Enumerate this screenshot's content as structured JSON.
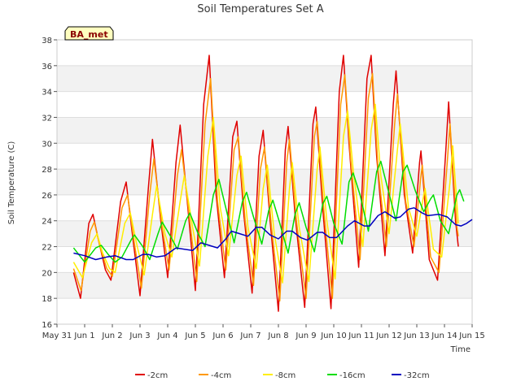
{
  "chart_data": {
    "type": "line",
    "title": "Soil Temperatures Set A",
    "xlabel": "Time",
    "ylabel": "Soil Temperature (C)",
    "badge": "BA_met",
    "xlim": [
      0,
      15
    ],
    "ylim": [
      16,
      38
    ],
    "x_ticks": [
      {
        "v": 0,
        "label": "May 31"
      },
      {
        "v": 1,
        "label": "Jun 1"
      },
      {
        "v": 2,
        "label": "Jun 2"
      },
      {
        "v": 3,
        "label": "Jun 3"
      },
      {
        "v": 4,
        "label": "Jun 4"
      },
      {
        "v": 5,
        "label": "Jun 5"
      },
      {
        "v": 6,
        "label": "Jun 6"
      },
      {
        "v": 7,
        "label": "Jun 7"
      },
      {
        "v": 8,
        "label": "Jun 8"
      },
      {
        "v": 9,
        "label": "Jun 9"
      },
      {
        "v": 10,
        "label": "Jun 10"
      },
      {
        "v": 11,
        "label": "Jun 11"
      },
      {
        "v": 12,
        "label": "Jun 12"
      },
      {
        "v": 13,
        "label": "Jun 13"
      },
      {
        "v": 14,
        "label": "Jun 14"
      },
      {
        "v": 15,
        "label": "Jun 15"
      }
    ],
    "y_ticks": [
      16,
      18,
      20,
      22,
      24,
      26,
      28,
      30,
      32,
      34,
      36,
      38
    ],
    "grid": true,
    "legend_position": "bottom",
    "series": [
      {
        "name": "-2cm",
        "color": "#e00000",
        "points": [
          [
            0.6,
            20.0
          ],
          [
            0.85,
            18.0
          ],
          [
            1.15,
            23.8
          ],
          [
            1.3,
            24.5
          ],
          [
            1.5,
            22.5
          ],
          [
            1.75,
            20.2
          ],
          [
            1.95,
            19.4
          ],
          [
            2.3,
            25.5
          ],
          [
            2.5,
            27.0
          ],
          [
            2.75,
            22.5
          ],
          [
            3.0,
            18.2
          ],
          [
            3.3,
            26.5
          ],
          [
            3.45,
            30.3
          ],
          [
            3.75,
            24.0
          ],
          [
            4.0,
            19.6
          ],
          [
            4.3,
            28.5
          ],
          [
            4.45,
            31.4
          ],
          [
            4.75,
            24.5
          ],
          [
            5.0,
            18.6
          ],
          [
            5.3,
            33.0
          ],
          [
            5.5,
            36.8
          ],
          [
            5.75,
            26.0
          ],
          [
            6.05,
            19.6
          ],
          [
            6.35,
            30.5
          ],
          [
            6.5,
            31.7
          ],
          [
            6.75,
            24.5
          ],
          [
            7.05,
            18.4
          ],
          [
            7.3,
            29.0
          ],
          [
            7.45,
            31.0
          ],
          [
            7.7,
            24.0
          ],
          [
            8.0,
            17.0
          ],
          [
            8.25,
            29.5
          ],
          [
            8.35,
            31.3
          ],
          [
            8.6,
            24.5
          ],
          [
            8.95,
            17.3
          ],
          [
            9.25,
            31.5
          ],
          [
            9.35,
            32.8
          ],
          [
            9.6,
            25.0
          ],
          [
            9.9,
            17.2
          ],
          [
            10.2,
            34.0
          ],
          [
            10.35,
            36.8
          ],
          [
            10.55,
            30.0
          ],
          [
            10.9,
            20.4
          ],
          [
            11.2,
            35.0
          ],
          [
            11.35,
            36.8
          ],
          [
            11.55,
            29.0
          ],
          [
            11.85,
            21.3
          ],
          [
            12.15,
            33.0
          ],
          [
            12.25,
            35.6
          ],
          [
            12.55,
            26.0
          ],
          [
            12.85,
            21.5
          ],
          [
            13.1,
            28.5
          ],
          [
            13.15,
            29.4
          ],
          [
            13.45,
            21.0
          ],
          [
            13.75,
            19.4
          ],
          [
            14.05,
            29.5
          ],
          [
            14.15,
            33.2
          ],
          [
            14.4,
            24.0
          ],
          [
            14.5,
            22.0
          ]
        ]
      },
      {
        "name": "-4cm",
        "color": "#ff9900",
        "points": [
          [
            0.6,
            20.3
          ],
          [
            0.87,
            18.6
          ],
          [
            1.2,
            23.2
          ],
          [
            1.35,
            23.9
          ],
          [
            1.55,
            22.0
          ],
          [
            1.8,
            20.3
          ],
          [
            2.0,
            19.7
          ],
          [
            2.35,
            25.0
          ],
          [
            2.55,
            26.0
          ],
          [
            2.8,
            22.2
          ],
          [
            3.05,
            18.8
          ],
          [
            3.35,
            26.0
          ],
          [
            3.5,
            28.8
          ],
          [
            3.8,
            23.5
          ],
          [
            4.05,
            20.2
          ],
          [
            4.35,
            27.5
          ],
          [
            4.5,
            29.5
          ],
          [
            4.8,
            24.0
          ],
          [
            5.05,
            19.3
          ],
          [
            5.35,
            31.5
          ],
          [
            5.55,
            35.0
          ],
          [
            5.8,
            25.5
          ],
          [
            6.1,
            20.2
          ],
          [
            6.4,
            29.5
          ],
          [
            6.55,
            30.5
          ],
          [
            6.8,
            24.0
          ],
          [
            7.1,
            19.0
          ],
          [
            7.35,
            28.0
          ],
          [
            7.5,
            29.7
          ],
          [
            7.75,
            23.5
          ],
          [
            8.05,
            17.8
          ],
          [
            8.3,
            28.5
          ],
          [
            8.4,
            30.3
          ],
          [
            8.65,
            24.0
          ],
          [
            9.0,
            18.0
          ],
          [
            9.3,
            30.5
          ],
          [
            9.4,
            31.7
          ],
          [
            9.65,
            24.6
          ],
          [
            9.95,
            18.0
          ],
          [
            10.25,
            33.0
          ],
          [
            10.4,
            35.3
          ],
          [
            10.6,
            29.0
          ],
          [
            10.95,
            21.0
          ],
          [
            11.25,
            33.5
          ],
          [
            11.4,
            35.4
          ],
          [
            11.6,
            28.0
          ],
          [
            11.9,
            22.0
          ],
          [
            12.2,
            31.5
          ],
          [
            12.3,
            33.8
          ],
          [
            12.6,
            25.5
          ],
          [
            12.9,
            22.0
          ],
          [
            13.15,
            27.5
          ],
          [
            13.2,
            28.3
          ],
          [
            13.5,
            21.2
          ],
          [
            13.8,
            20.0
          ],
          [
            14.1,
            28.5
          ],
          [
            14.2,
            31.5
          ],
          [
            14.45,
            23.5
          ],
          [
            14.5,
            22.8
          ]
        ]
      },
      {
        "name": "-8cm",
        "color": "#ffee00",
        "points": [
          [
            0.6,
            20.8
          ],
          [
            0.92,
            19.6
          ],
          [
            1.25,
            22.3
          ],
          [
            1.45,
            23.0
          ],
          [
            1.65,
            21.5
          ],
          [
            1.9,
            20.3
          ],
          [
            2.1,
            20.0
          ],
          [
            2.45,
            23.8
          ],
          [
            2.65,
            24.6
          ],
          [
            2.9,
            22.0
          ],
          [
            3.15,
            19.8
          ],
          [
            3.45,
            24.5
          ],
          [
            3.6,
            26.7
          ],
          [
            3.9,
            23.0
          ],
          [
            4.15,
            21.2
          ],
          [
            4.45,
            25.5
          ],
          [
            4.6,
            27.5
          ],
          [
            4.9,
            23.5
          ],
          [
            5.15,
            20.5
          ],
          [
            5.45,
            29.0
          ],
          [
            5.65,
            32.0
          ],
          [
            5.9,
            25.0
          ],
          [
            6.2,
            21.3
          ],
          [
            6.5,
            27.5
          ],
          [
            6.65,
            29.0
          ],
          [
            6.9,
            23.5
          ],
          [
            7.2,
            20.3
          ],
          [
            7.45,
            26.5
          ],
          [
            7.6,
            28.3
          ],
          [
            7.85,
            23.0
          ],
          [
            8.15,
            19.2
          ],
          [
            8.4,
            26.5
          ],
          [
            8.5,
            28.5
          ],
          [
            8.75,
            23.5
          ],
          [
            9.1,
            19.3
          ],
          [
            9.4,
            28.0
          ],
          [
            9.5,
            29.7
          ],
          [
            9.75,
            24.0
          ],
          [
            10.05,
            19.5
          ],
          [
            10.35,
            30.5
          ],
          [
            10.5,
            32.5
          ],
          [
            10.7,
            28.0
          ],
          [
            11.05,
            22.0
          ],
          [
            11.35,
            31.0
          ],
          [
            11.5,
            33.0
          ],
          [
            11.7,
            27.5
          ],
          [
            12.0,
            23.0
          ],
          [
            12.3,
            29.5
          ],
          [
            12.4,
            31.5
          ],
          [
            12.7,
            25.0
          ],
          [
            13.0,
            22.8
          ],
          [
            13.25,
            26.0
          ],
          [
            13.3,
            26.5
          ],
          [
            13.6,
            21.8
          ],
          [
            13.9,
            21.2
          ],
          [
            14.2,
            27.0
          ],
          [
            14.3,
            29.8
          ],
          [
            14.5,
            23.8
          ]
        ]
      },
      {
        "name": "-16cm",
        "color": "#00dd00",
        "points": [
          [
            0.6,
            21.9
          ],
          [
            1.0,
            20.8
          ],
          [
            1.4,
            21.9
          ],
          [
            1.6,
            22.1
          ],
          [
            1.85,
            21.4
          ],
          [
            2.1,
            20.8
          ],
          [
            2.35,
            21.2
          ],
          [
            2.7,
            22.6
          ],
          [
            2.8,
            22.9
          ],
          [
            3.1,
            22.0
          ],
          [
            3.35,
            21.0
          ],
          [
            3.65,
            23.0
          ],
          [
            3.8,
            23.9
          ],
          [
            4.1,
            22.8
          ],
          [
            4.35,
            21.8
          ],
          [
            4.65,
            24.0
          ],
          [
            4.8,
            24.6
          ],
          [
            5.1,
            23.0
          ],
          [
            5.35,
            22.0
          ],
          [
            5.65,
            26.0
          ],
          [
            5.85,
            27.2
          ],
          [
            6.1,
            25.0
          ],
          [
            6.4,
            22.3
          ],
          [
            6.7,
            25.5
          ],
          [
            6.85,
            26.2
          ],
          [
            7.1,
            24.3
          ],
          [
            7.4,
            22.2
          ],
          [
            7.65,
            24.8
          ],
          [
            7.8,
            25.6
          ],
          [
            8.05,
            23.8
          ],
          [
            8.35,
            21.5
          ],
          [
            8.6,
            24.5
          ],
          [
            8.75,
            25.4
          ],
          [
            9.0,
            23.5
          ],
          [
            9.3,
            21.6
          ],
          [
            9.6,
            25.3
          ],
          [
            9.75,
            25.9
          ],
          [
            10.0,
            23.8
          ],
          [
            10.3,
            22.2
          ],
          [
            10.55,
            27.0
          ],
          [
            10.7,
            27.7
          ],
          [
            10.95,
            26.0
          ],
          [
            11.25,
            23.2
          ],
          [
            11.55,
            27.8
          ],
          [
            11.7,
            28.6
          ],
          [
            11.95,
            26.5
          ],
          [
            12.25,
            24.0
          ],
          [
            12.5,
            27.8
          ],
          [
            12.65,
            28.3
          ],
          [
            12.95,
            26.3
          ],
          [
            13.25,
            24.7
          ],
          [
            13.5,
            25.7
          ],
          [
            13.6,
            26.0
          ],
          [
            13.85,
            24.0
          ],
          [
            14.15,
            23.0
          ],
          [
            14.45,
            26.0
          ],
          [
            14.55,
            26.4
          ],
          [
            14.7,
            25.5
          ]
        ]
      },
      {
        "name": "-32cm",
        "color": "#0000c0",
        "points": [
          [
            0.6,
            21.5
          ],
          [
            1.0,
            21.3
          ],
          [
            1.4,
            21.0
          ],
          [
            1.8,
            21.2
          ],
          [
            2.1,
            21.3
          ],
          [
            2.5,
            21.0
          ],
          [
            2.75,
            21.0
          ],
          [
            3.1,
            21.4
          ],
          [
            3.3,
            21.4
          ],
          [
            3.6,
            21.2
          ],
          [
            3.9,
            21.3
          ],
          [
            4.3,
            21.9
          ],
          [
            4.6,
            21.8
          ],
          [
            4.9,
            21.7
          ],
          [
            5.2,
            22.3
          ],
          [
            5.5,
            22.1
          ],
          [
            5.8,
            21.9
          ],
          [
            6.1,
            22.6
          ],
          [
            6.3,
            23.2
          ],
          [
            6.6,
            23.0
          ],
          [
            6.9,
            22.8
          ],
          [
            7.2,
            23.5
          ],
          [
            7.4,
            23.5
          ],
          [
            7.7,
            22.9
          ],
          [
            8.0,
            22.6
          ],
          [
            8.3,
            23.2
          ],
          [
            8.5,
            23.2
          ],
          [
            8.8,
            22.7
          ],
          [
            9.05,
            22.5
          ],
          [
            9.4,
            23.1
          ],
          [
            9.6,
            23.1
          ],
          [
            9.85,
            22.7
          ],
          [
            10.1,
            22.7
          ],
          [
            10.5,
            23.6
          ],
          [
            10.75,
            24.0
          ],
          [
            11.1,
            23.6
          ],
          [
            11.3,
            23.6
          ],
          [
            11.6,
            24.4
          ],
          [
            11.85,
            24.7
          ],
          [
            12.2,
            24.2
          ],
          [
            12.4,
            24.3
          ],
          [
            12.7,
            24.9
          ],
          [
            12.9,
            25.0
          ],
          [
            13.2,
            24.6
          ],
          [
            13.4,
            24.4
          ],
          [
            13.8,
            24.5
          ],
          [
            14.1,
            24.3
          ],
          [
            14.4,
            23.7
          ],
          [
            14.6,
            23.6
          ],
          [
            14.8,
            23.8
          ],
          [
            15.0,
            24.1
          ]
        ]
      }
    ]
  }
}
